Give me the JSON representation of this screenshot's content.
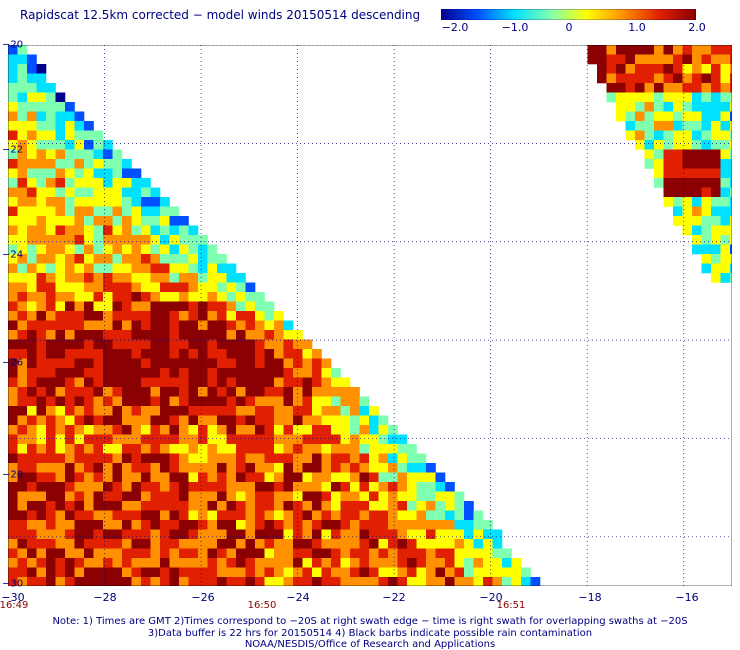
{
  "header": {
    "title": "Rapidscat 12.5km corrected − model winds 20150514 descending"
  },
  "colorbar": {
    "labels": [
      "−2.0",
      "−1.0",
      "0",
      "1.0",
      "2.0"
    ],
    "label_values": [
      -2.0,
      -1.0,
      0,
      1.0,
      2.0
    ],
    "colors": [
      "#00008b",
      "#0050ff",
      "#00e0ff",
      "#7fffb0",
      "#ffff00",
      "#ff9000",
      "#e02000",
      "#8b0000"
    ]
  },
  "map": {
    "lon_range": [
      -30,
      -15
    ],
    "lat_range": [
      -20,
      -31
    ],
    "x_ticks": [
      "−30",
      "−28",
      "−26",
      "−24",
      "−22",
      "−20",
      "−18",
      "−16"
    ],
    "x_tick_values": [
      -30,
      -28,
      -26,
      -24,
      -22,
      -20,
      -18,
      -16
    ],
    "y_ticks": [
      "−20",
      "−22",
      "−24",
      "−26",
      "−28",
      "−30"
    ],
    "y_tick_values": [
      -20,
      -22,
      -24,
      -26,
      -28,
      -30
    ],
    "time_labels": [
      {
        "text": "16:49",
        "lon": -30
      },
      {
        "text": "16:50",
        "lon": -25.2
      },
      {
        "text": "16:51",
        "lon": -20.3
      }
    ],
    "grid": "dotted"
  },
  "footer": {
    "line1": "Note: 1) Times are GMT 2)Times correspond to −20S at right swath edge − time is right swath for overlapping swaths at −20S",
    "line2": "3)Data buffer is 22 hrs for 20150514 4) Black barbs indicate possible rain contamination",
    "line3": "NOAA/NESDIS/Office of Research and Applications"
  }
}
